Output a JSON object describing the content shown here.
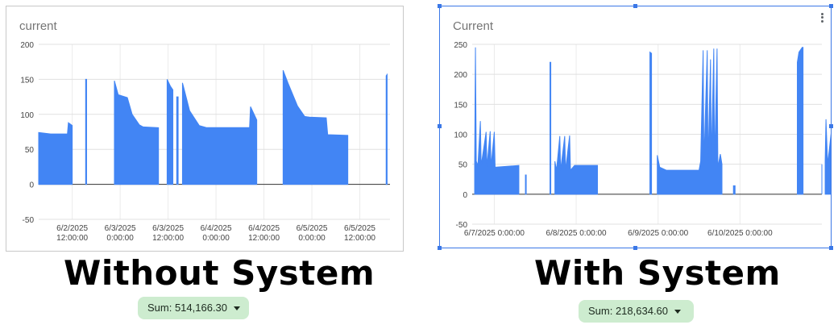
{
  "chart_data": [
    {
      "type": "area",
      "title": "current",
      "xlabel": "",
      "ylabel": "",
      "ylim": [
        -50,
        200
      ],
      "yticks": [
        -50,
        0,
        50,
        100,
        150,
        200
      ],
      "xticks": [
        {
          "line1": "6/2/2025",
          "line2": "12:00:00"
        },
        {
          "line1": "6/3/2025",
          "line2": "0:00:00"
        },
        {
          "line1": "6/3/2025",
          "line2": "12:00:00"
        },
        {
          "line1": "6/4/2025",
          "line2": "0:00:00"
        },
        {
          "line1": "6/4/2025",
          "line2": "12:00:00"
        },
        {
          "line1": "6/5/2025",
          "line2": "0:00:00"
        },
        {
          "line1": "6/5/2025",
          "line2": "12:00:00"
        }
      ],
      "xtick_values": [
        1,
        2,
        3,
        4,
        5,
        6,
        7
      ],
      "xlim": [
        0.3,
        7.63
      ],
      "grid": true,
      "color": "#4285f4",
      "segments": [
        {
          "points": [
            [
              0.3,
              74
            ],
            [
              0.55,
              72
            ],
            [
              0.9,
              72
            ],
            [
              0.92,
              88
            ],
            [
              1.0,
              84
            ]
          ]
        },
        {
          "points": [
            [
              1.28,
              150
            ],
            [
              1.3,
              150
            ]
          ]
        },
        {
          "points": [
            [
              1.88,
              148
            ],
            [
              1.96,
              128
            ],
            [
              2.15,
              124
            ],
            [
              2.25,
              100
            ],
            [
              2.4,
              85
            ],
            [
              2.48,
              82
            ],
            [
              2.8,
              81
            ]
          ]
        },
        {
          "points": [
            [
              2.98,
              150
            ],
            [
              3.05,
              140
            ],
            [
              3.1,
              135
            ]
          ]
        },
        {
          "points": [
            [
              3.18,
              125
            ],
            [
              3.21,
              125
            ]
          ]
        },
        {
          "points": [
            [
              3.3,
              145
            ],
            [
              3.32,
              140
            ],
            [
              3.45,
              105
            ],
            [
              3.65,
              84
            ],
            [
              3.8,
              81
            ],
            [
              4.7,
              81
            ],
            [
              4.72,
              111
            ],
            [
              4.85,
              92
            ]
          ]
        },
        {
          "points": [
            [
              5.4,
              163
            ],
            [
              5.5,
              145
            ],
            [
              5.7,
              112
            ],
            [
              5.85,
              97
            ],
            [
              5.95,
              96
            ],
            [
              6.3,
              95
            ],
            [
              6.33,
              71
            ],
            [
              6.75,
              70
            ]
          ]
        },
        {
          "points": [
            [
              7.55,
              155
            ],
            [
              7.57,
              157
            ]
          ]
        }
      ]
    },
    {
      "type": "area",
      "title": "Current",
      "xlabel": "",
      "ylabel": "",
      "ylim": [
        -50,
        250
      ],
      "yticks": [
        -50,
        0,
        50,
        100,
        150,
        200,
        250
      ],
      "xticks": [
        {
          "line1": "6/7/2025 0:00:00"
        },
        {
          "line1": "6/8/2025 0:00:00"
        },
        {
          "line1": "6/9/2025 0:00:00"
        },
        {
          "line1": "6/10/2025 0:00:00"
        }
      ],
      "xtick_values": [
        0,
        1,
        2,
        3
      ],
      "xlim": [
        -0.27,
        4.0
      ],
      "grid": true,
      "color": "#4285f4",
      "segments": [
        {
          "points": [
            [
              -0.24,
              50
            ],
            [
              -0.23,
              245
            ],
            [
              -0.22,
              55
            ],
            [
              -0.2,
              48
            ],
            [
              -0.17,
              122
            ],
            [
              -0.16,
              48
            ],
            [
              -0.1,
              104
            ],
            [
              -0.09,
              46
            ],
            [
              -0.05,
              105
            ],
            [
              -0.04,
              46
            ],
            [
              0.0,
              104
            ],
            [
              0.01,
              45
            ],
            [
              0.3,
              48
            ]
          ]
        },
        {
          "points": [
            [
              0.38,
              32
            ],
            [
              0.39,
              32
            ]
          ]
        },
        {
          "points": [
            [
              0.68,
              220
            ],
            [
              0.69,
              220
            ]
          ]
        },
        {
          "points": [
            [
              0.74,
              55
            ],
            [
              0.76,
              40
            ],
            [
              0.8,
              97
            ],
            [
              0.81,
              40
            ],
            [
              0.86,
              97
            ],
            [
              0.87,
              40
            ],
            [
              0.92,
              98
            ],
            [
              0.93,
              40
            ],
            [
              0.98,
              48
            ],
            [
              1.26,
              48
            ]
          ]
        },
        {
          "points": [
            [
              1.9,
              237
            ],
            [
              1.92,
              235
            ]
          ]
        },
        {
          "points": [
            [
              1.99,
              65
            ],
            [
              2.02,
              45
            ],
            [
              2.1,
              40
            ],
            [
              2.5,
              40
            ],
            [
              2.52,
              55
            ],
            [
              2.55,
              240
            ],
            [
              2.56,
              52
            ],
            [
              2.6,
              240
            ],
            [
              2.61,
              50
            ],
            [
              2.64,
              225
            ],
            [
              2.65,
              55
            ],
            [
              2.68,
              243
            ],
            [
              2.69,
              52
            ],
            [
              2.72,
              243
            ],
            [
              2.73,
              45
            ],
            [
              2.76,
              67
            ],
            [
              2.78,
              50
            ]
          ]
        },
        {
          "points": [
            [
              2.92,
              14
            ],
            [
              2.94,
              14
            ]
          ]
        },
        {
          "points": [
            [
              3.7,
              220
            ],
            [
              3.72,
              237
            ],
            [
              3.76,
              245
            ],
            [
              3.77,
              245
            ]
          ]
        },
        {
          "points": [
            [
              4.0,
              50
            ]
          ]
        },
        {
          "points": [
            [
              4.04,
              55
            ],
            [
              4.05,
              125
            ],
            [
              4.07,
              50
            ],
            [
              4.12,
              110
            ],
            [
              4.14,
              48
            ],
            [
              4.3,
              42
            ],
            [
              4.5,
              40
            ]
          ]
        },
        {
          "points": [
            [
              4.16,
              47
            ],
            [
              4.17,
              40
            ]
          ]
        }
      ]
    }
  ],
  "labels": {
    "left_caption": "Without System",
    "right_caption": "With System",
    "left_sum": "Sum: 514,166.30",
    "right_sum": "Sum: 218,634.60"
  }
}
